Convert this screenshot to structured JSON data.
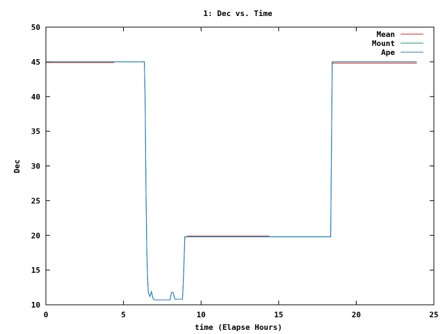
{
  "chart_data": {
    "type": "line",
    "title": "1: Dec vs. Time",
    "xlabel": "time (Elapse Hours)",
    "ylabel": "Dec",
    "xlim": [
      0,
      25
    ],
    "ylim": [
      10,
      50
    ],
    "xticks": [
      0,
      5,
      10,
      15,
      20,
      25
    ],
    "yticks": [
      10,
      15,
      20,
      25,
      30,
      35,
      40,
      45,
      50
    ],
    "grid": false,
    "legend_position": "top-right",
    "series": [
      {
        "name": "Mean",
        "color": "#e41a1c",
        "segments": [
          [
            [
              0,
              44.9
            ],
            [
              4.4,
              44.9
            ]
          ],
          [
            [
              9.1,
              19.9
            ],
            [
              14.4,
              19.9
            ]
          ],
          [
            [
              18.4,
              44.8
            ],
            [
              23.9,
              44.8
            ]
          ]
        ]
      },
      {
        "name": "Mount",
        "color": "#1a9850",
        "segments": [
          [
            [
              0,
              45.0
            ],
            [
              6.35,
              45.0
            ],
            [
              6.4,
              39
            ],
            [
              6.45,
              26
            ],
            [
              6.5,
              18
            ],
            [
              6.55,
              14
            ],
            [
              6.6,
              11.8
            ],
            [
              6.7,
              11.2
            ],
            [
              6.8,
              11.9
            ],
            [
              6.9,
              10.9
            ],
            [
              7.0,
              10.7
            ],
            [
              8.0,
              10.7
            ],
            [
              8.1,
              11.8
            ],
            [
              8.2,
              11.8
            ],
            [
              8.3,
              10.8
            ],
            [
              8.8,
              10.8
            ],
            [
              8.85,
              13
            ],
            [
              8.9,
              16
            ],
            [
              8.95,
              19.8
            ],
            [
              18.35,
              19.8
            ],
            [
              18.4,
              32.5
            ],
            [
              18.45,
              45.0
            ],
            [
              23.9,
              45.0
            ]
          ]
        ]
      },
      {
        "name": "Ape",
        "color": "#1f78c8",
        "segments": [
          [
            [
              0,
              45.0
            ],
            [
              6.35,
              45.0
            ],
            [
              6.4,
              39
            ],
            [
              6.45,
              26
            ],
            [
              6.5,
              18
            ],
            [
              6.55,
              14
            ],
            [
              6.6,
              11.8
            ],
            [
              6.7,
              11.2
            ],
            [
              6.8,
              11.9
            ],
            [
              6.9,
              10.9
            ],
            [
              7.0,
              10.7
            ],
            [
              8.0,
              10.7
            ],
            [
              8.1,
              11.8
            ],
            [
              8.2,
              11.8
            ],
            [
              8.3,
              10.8
            ],
            [
              8.8,
              10.8
            ],
            [
              8.85,
              13
            ],
            [
              8.9,
              16
            ],
            [
              8.95,
              19.8
            ],
            [
              18.35,
              19.8
            ],
            [
              18.4,
              32.5
            ],
            [
              18.45,
              45.0
            ],
            [
              23.9,
              45.0
            ]
          ]
        ]
      }
    ]
  }
}
